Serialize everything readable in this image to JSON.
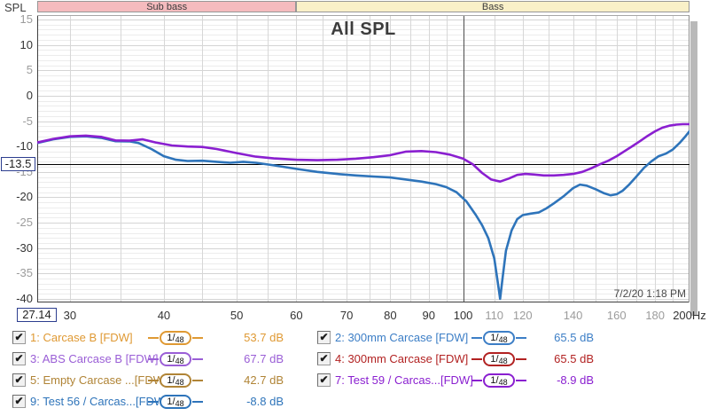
{
  "top_axis": {
    "spl_label": "SPL",
    "bands": [
      {
        "label": "Sub bass",
        "bg": "#F5BBBE",
        "from": 27.14,
        "to": 60
      },
      {
        "label": "Bass",
        "bg": "#F9F0C8",
        "from": 60,
        "to": 200
      }
    ]
  },
  "chart_data": {
    "type": "line",
    "title": "All SPL",
    "timestamp": "7/2/20 1:18 PM",
    "x_axis": {
      "scale": "log",
      "min": 27.14,
      "max": 200,
      "unit": "Hz",
      "gridlines": [
        30,
        35,
        40,
        45,
        50,
        55,
        60,
        65,
        70,
        75,
        80,
        85,
        90,
        95,
        100,
        110,
        120,
        130,
        140,
        150,
        160,
        170,
        180,
        190,
        200
      ],
      "emphasized_gridline": 100,
      "tick_labels": [
        {
          "text": "30",
          "f": 30,
          "dark": true
        },
        {
          "text": "40",
          "f": 40,
          "dark": true
        },
        {
          "text": "50",
          "f": 50,
          "dark": true
        },
        {
          "text": "60",
          "f": 60,
          "dark": true
        },
        {
          "text": "70",
          "f": 70,
          "dark": true
        },
        {
          "text": "80",
          "f": 80,
          "dark": true
        },
        {
          "text": "90",
          "f": 90,
          "dark": true
        },
        {
          "text": "100",
          "f": 100,
          "dark": true
        },
        {
          "text": "110",
          "f": 110,
          "dark": false
        },
        {
          "text": "120",
          "f": 120,
          "dark": false
        },
        {
          "text": "140",
          "f": 140,
          "dark": false
        },
        {
          "text": "160",
          "f": 160,
          "dark": false
        },
        {
          "text": "180",
          "f": 180,
          "dark": false
        },
        {
          "text": "200Hz",
          "f": 200,
          "dark": true
        }
      ]
    },
    "y_axis": {
      "label": "SPL",
      "unit": "dB",
      "min": -40.7,
      "max": 15.87,
      "major_step": 5,
      "minor_step": 1,
      "tick_labels": [
        {
          "v": 15,
          "dark": false
        },
        {
          "v": 10,
          "dark": true
        },
        {
          "v": 5,
          "dark": false
        },
        {
          "v": 0,
          "dark": true
        },
        {
          "v": -5,
          "dark": false
        },
        {
          "v": -10,
          "dark": true
        },
        {
          "v": -15,
          "dark": false
        },
        {
          "v": -20,
          "dark": true
        },
        {
          "v": -25,
          "dark": false
        },
        {
          "v": -30,
          "dark": true
        },
        {
          "v": -35,
          "dark": false
        },
        {
          "v": -40,
          "dark": true
        }
      ]
    },
    "cursor": {
      "x_readout": "27.14",
      "y_readout": "-13.5",
      "y_value": -13.5
    },
    "series": [
      {
        "id": 9,
        "name": "9: Test 56 / Carcas...[FDW]",
        "color": "#2E74BA",
        "points": [
          [
            27.14,
            -9.3
          ],
          [
            28.5,
            -8.6
          ],
          [
            30,
            -8.1
          ],
          [
            31.5,
            -8.0
          ],
          [
            33,
            -8.3
          ],
          [
            34.5,
            -8.95
          ],
          [
            36,
            -9.0
          ],
          [
            37,
            -9.3
          ],
          [
            38.5,
            -10.5
          ],
          [
            40,
            -11.9
          ],
          [
            41.5,
            -12.6
          ],
          [
            43,
            -12.85
          ],
          [
            45,
            -12.8
          ],
          [
            47,
            -13.0
          ],
          [
            49,
            -13.2
          ],
          [
            51,
            -13.0
          ],
          [
            53,
            -13.2
          ],
          [
            56,
            -13.7
          ],
          [
            60,
            -14.4
          ],
          [
            64,
            -15.0
          ],
          [
            68,
            -15.4
          ],
          [
            72,
            -15.7
          ],
          [
            76,
            -15.9
          ],
          [
            80,
            -16.1
          ],
          [
            84,
            -16.5
          ],
          [
            88,
            -16.9
          ],
          [
            92,
            -17.4
          ],
          [
            95,
            -18.0
          ],
          [
            98,
            -19.0
          ],
          [
            101,
            -20.8
          ],
          [
            104,
            -23.5
          ],
          [
            106,
            -25.5
          ],
          [
            108,
            -28.0
          ],
          [
            110,
            -32.0
          ],
          [
            111.5,
            -38.0
          ],
          [
            112,
            -40.0
          ],
          [
            112.8,
            -36.0
          ],
          [
            114,
            -30.5
          ],
          [
            116,
            -26.5
          ],
          [
            118,
            -24.3
          ],
          [
            120,
            -23.5
          ],
          [
            123,
            -23.2
          ],
          [
            126,
            -23.0
          ],
          [
            129,
            -22.2
          ],
          [
            132,
            -21.2
          ],
          [
            136,
            -19.8
          ],
          [
            140,
            -18.2
          ],
          [
            143,
            -17.5
          ],
          [
            146,
            -17.7
          ],
          [
            150,
            -18.4
          ],
          [
            154,
            -19.2
          ],
          [
            157,
            -19.6
          ],
          [
            160,
            -19.4
          ],
          [
            163,
            -18.7
          ],
          [
            166,
            -17.6
          ],
          [
            170,
            -15.9
          ],
          [
            174,
            -14.2
          ],
          [
            178,
            -12.9
          ],
          [
            182,
            -11.9
          ],
          [
            186,
            -11.4
          ],
          [
            190,
            -10.6
          ],
          [
            194,
            -9.3
          ],
          [
            197,
            -8.2
          ],
          [
            200,
            -7.0
          ]
        ]
      },
      {
        "id": 7,
        "name": "7: Test 59 / Carcas...[FDW]",
        "color": "#8A1FD0",
        "points": [
          [
            27.14,
            -9.2
          ],
          [
            28.5,
            -8.5
          ],
          [
            30,
            -8.0
          ],
          [
            31.5,
            -7.85
          ],
          [
            33,
            -8.1
          ],
          [
            34.5,
            -8.8
          ],
          [
            36,
            -8.85
          ],
          [
            37.5,
            -8.6
          ],
          [
            39,
            -9.2
          ],
          [
            41,
            -9.8
          ],
          [
            43,
            -10.0
          ],
          [
            45,
            -10.1
          ],
          [
            47,
            -10.5
          ],
          [
            50,
            -11.3
          ],
          [
            53,
            -12.0
          ],
          [
            56,
            -12.35
          ],
          [
            60,
            -12.6
          ],
          [
            64,
            -12.7
          ],
          [
            68,
            -12.6
          ],
          [
            72,
            -12.4
          ],
          [
            76,
            -12.1
          ],
          [
            80,
            -11.7
          ],
          [
            84,
            -11.0
          ],
          [
            88,
            -10.9
          ],
          [
            92,
            -11.1
          ],
          [
            96,
            -11.6
          ],
          [
            100,
            -12.4
          ],
          [
            103,
            -13.5
          ],
          [
            106,
            -15.2
          ],
          [
            109,
            -16.5
          ],
          [
            112,
            -16.9
          ],
          [
            115,
            -16.3
          ],
          [
            118,
            -15.6
          ],
          [
            121,
            -15.4
          ],
          [
            124,
            -15.5
          ],
          [
            128,
            -15.7
          ],
          [
            132,
            -15.7
          ],
          [
            136,
            -15.6
          ],
          [
            140,
            -15.4
          ],
          [
            144,
            -15.0
          ],
          [
            148,
            -14.3
          ],
          [
            152,
            -13.5
          ],
          [
            156,
            -12.8
          ],
          [
            160,
            -11.9
          ],
          [
            164,
            -10.9
          ],
          [
            168,
            -9.9
          ],
          [
            172,
            -8.9
          ],
          [
            176,
            -7.9
          ],
          [
            180,
            -7.0
          ],
          [
            184,
            -6.3
          ],
          [
            188,
            -5.9
          ],
          [
            192,
            -5.7
          ],
          [
            196,
            -5.6
          ],
          [
            200,
            -5.6
          ]
        ]
      }
    ]
  },
  "legend": {
    "smoothing": "1/48",
    "check_glyph": "✔",
    "columns": [
      {
        "rows": [
          {
            "id": 1,
            "label": "1: Carcase B [FDW]",
            "color": "#DF9933",
            "value": "53.7 dB",
            "checked": true
          },
          {
            "id": 3,
            "label": "3: ABS Carcase B [FDW]",
            "color": "#9A5ED6",
            "value": "67.7 dB",
            "checked": true
          },
          {
            "id": 5,
            "label": "5: Empty Carcase ...[FDW]",
            "color": "#B08436",
            "value": "42.7 dB",
            "checked": true
          },
          {
            "id": 9,
            "label": "9: Test 56 / Carcas...[FDW]",
            "color": "#2E74BA",
            "value": "-8.8 dB",
            "checked": true
          }
        ]
      },
      {
        "rows": [
          {
            "id": 2,
            "label": "2: 300mm Carcase [FDW]",
            "color": "#3C7EC6",
            "value": "65.5 dB",
            "checked": true
          },
          {
            "id": 4,
            "label": "4: 300mm Carcase [FDW]",
            "color": "#B22222",
            "value": "65.5 dB",
            "checked": true
          },
          {
            "id": 7,
            "label": "7: Test 59 / Carcas...[FDW]",
            "color": "#8A1FD0",
            "value": "-8.9 dB",
            "checked": true
          }
        ]
      }
    ]
  }
}
